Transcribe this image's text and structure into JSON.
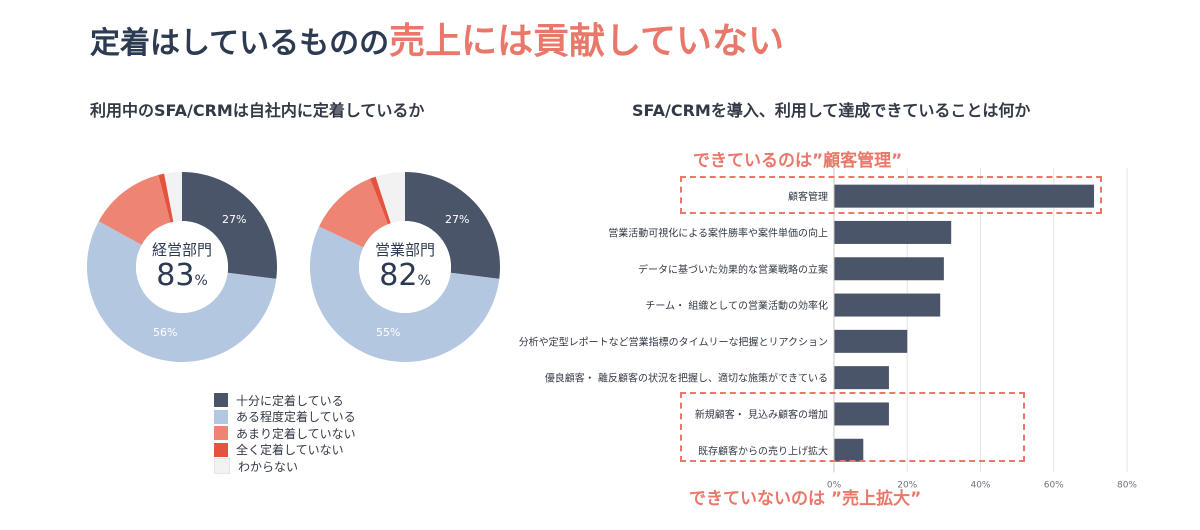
{
  "title": {
    "prefix": "定着はしているものの",
    "highlight": "売上には貢献していない"
  },
  "left_panel": {
    "subtitle": "利用中のSFA/CRMは自社内に定着しているか"
  },
  "right_panel": {
    "subtitle": "SFA/CRMを導入、利用して達成できていることは何か",
    "callout_top": "できているのは”顧客管理”",
    "callout_bottom": "できていないのは ”売上拡大”"
  },
  "chart_data": [
    {
      "type": "pie",
      "title": "経営部門",
      "center_value": "83",
      "center_unit": "%",
      "categories": [
        "十分に定着している",
        "ある程度定着している",
        "あまり定着していない",
        "全く定着していない",
        "わからない"
      ],
      "values": [
        27,
        56,
        13,
        1,
        3
      ],
      "slice_labels": [
        "27%",
        "56%",
        "",
        "",
        ""
      ]
    },
    {
      "type": "pie",
      "title": "営業部門",
      "center_value": "82",
      "center_unit": "%",
      "categories": [
        "十分に定着している",
        "ある程度定着している",
        "あまり定着していない",
        "全く定着していない",
        "わからない"
      ],
      "values": [
        27,
        55,
        12,
        1,
        5
      ],
      "slice_labels": [
        "27%",
        "55%",
        "",
        "",
        ""
      ]
    },
    {
      "type": "bar",
      "orientation": "horizontal",
      "categories": [
        "顧客管理",
        "営業活動可視化による案件勝率や案件単価の向上",
        "データに基づいた効果的な営業戦略の立案",
        "チーム・ 組織としての営業活動の効率化",
        "分析や定型レポートなど営業指標のタイムリーな把握とリアクション",
        "優良顧客・ 離反顧客の状況を把握し、適切な施策ができている",
        "新規顧客・ 見込み顧客の増加",
        "既存顧客からの売り上げ拡大"
      ],
      "values": [
        71,
        32,
        30,
        29,
        20,
        15,
        15,
        8
      ],
      "xlim": [
        0,
        80
      ],
      "ticks": [
        0,
        20,
        40,
        60,
        80
      ],
      "tick_labels": [
        "0%",
        "20%",
        "40%",
        "60%",
        "80%"
      ],
      "grid": true
    }
  ],
  "legend": {
    "items": [
      {
        "label": "十分に定着している",
        "color": "#4b5569"
      },
      {
        "label": "ある程度定着している",
        "color": "#b3c7e0"
      },
      {
        "label": "あまり定着していない",
        "color": "#ed8474"
      },
      {
        "label": "全く定着していない",
        "color": "#e4533e"
      },
      {
        "label": "わからない",
        "color": "#f2f2f2"
      }
    ]
  },
  "colors": {
    "bar": "#4b5569",
    "accent": "#e9786a",
    "heading": "#2d3b52"
  }
}
